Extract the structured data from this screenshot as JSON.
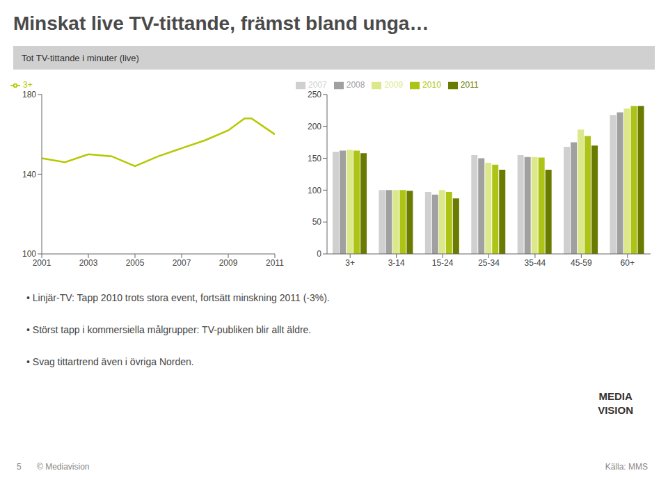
{
  "title": "Minskat live TV-tittande, främst bland unga…",
  "subtitle": "Tot TV-tittande i minuter (live)",
  "annotations": [
    "• Linjär-TV: Tapp 2010 trots stora event, fortsätt minskning 2011 (-3%).",
    "• Störst tapp i kommersiella målgrupper: TV-publiken blir allt äldre.",
    "• Svag tittartrend även i övriga Norden.",
    "5",
    "© Mediavision",
    "Källa: MMS",
    "MEDIA\nVISION"
  ],
  "chart_data": [
    {
      "type": "line",
      "x": [
        2001,
        2002,
        2003,
        2004,
        2005,
        2006,
        2007,
        2008,
        2009,
        2009.7,
        2010,
        2011
      ],
      "series": [
        {
          "name": "3+",
          "color": "#b5c800",
          "values": [
            148,
            146,
            150,
            149,
            144,
            149,
            153,
            157,
            162,
            168,
            168,
            160
          ]
        }
      ],
      "xlim": [
        2001,
        2011
      ],
      "xticks": [
        2001,
        2003,
        2005,
        2007,
        2009,
        2011
      ],
      "ylim": [
        100,
        180
      ],
      "yticks": [
        100,
        140,
        180
      ],
      "legend": "upper left",
      "grid": false
    },
    {
      "type": "bar",
      "categories": [
        "3+",
        "3-14",
        "15-24",
        "25-34",
        "35-44",
        "45-59",
        "60+"
      ],
      "series": [
        {
          "name": "2007",
          "color": "#d0d0d0",
          "values": [
            160,
            100,
            97,
            155,
            155,
            168,
            218
          ]
        },
        {
          "name": "2008",
          "color": "#a0a0a0",
          "values": [
            162,
            100,
            93,
            150,
            152,
            175,
            222
          ]
        },
        {
          "name": "2009",
          "color": "#dde88a",
          "values": [
            163,
            100,
            100,
            143,
            152,
            195,
            228
          ]
        },
        {
          "name": "2010",
          "color": "#adc416",
          "values": [
            162,
            100,
            97,
            140,
            151,
            185,
            232
          ]
        },
        {
          "name": "2011",
          "color": "#6b7a00",
          "values": [
            158,
            99,
            87,
            132,
            132,
            170,
            232
          ]
        }
      ],
      "ylim": [
        0,
        250
      ],
      "yticks": [
        0,
        50,
        100,
        150,
        200,
        250
      ],
      "legend": "upper left",
      "grid": false
    }
  ]
}
